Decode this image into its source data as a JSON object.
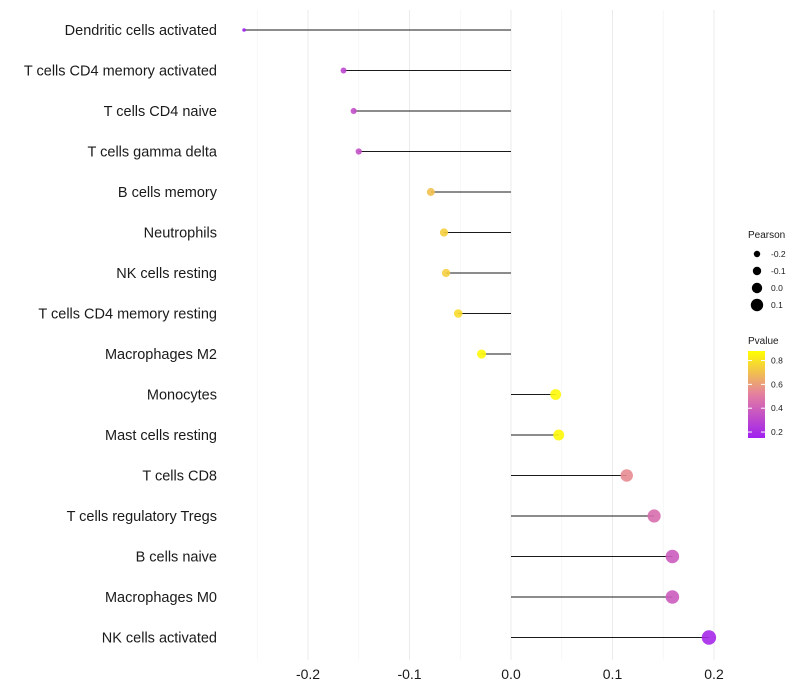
{
  "chart_data": {
    "type": "lollipop",
    "title": "",
    "xlabel": "",
    "ylabel": "",
    "xlim": [
      -0.3,
      0.22
    ],
    "x_ticks": [
      -0.2,
      -0.1,
      0.0,
      0.1,
      0.2
    ],
    "x_tick_labels": [
      "-0.2",
      "-0.1",
      "0.0",
      "0.1",
      "0.2"
    ],
    "grid": true,
    "categories": [
      "Dendritic cells activated",
      "T cells CD4 memory activated",
      "T cells CD4 naive",
      "T cells gamma delta",
      "B cells memory",
      "Neutrophils",
      "NK cells resting",
      "T cells CD4 memory resting",
      "Macrophages M2",
      "Monocytes",
      "Mast cells resting",
      "T cells CD8",
      "T cells regulatory  Tregs ",
      "B cells naive",
      "Macrophages M0",
      "NK cells activated"
    ],
    "values": [
      -0.263,
      -0.165,
      -0.155,
      -0.15,
      -0.079,
      -0.066,
      -0.064,
      -0.052,
      -0.029,
      0.044,
      0.047,
      0.114,
      0.141,
      0.159,
      0.159,
      0.195
    ],
    "pvalues": [
      0.15,
      0.3,
      0.33,
      0.34,
      0.7,
      0.74,
      0.74,
      0.78,
      0.86,
      0.86,
      0.86,
      0.55,
      0.45,
      0.38,
      0.38,
      0.18
    ],
    "legend_size": {
      "title": "Pearson",
      "values": [
        -0.2,
        -0.1,
        0.0,
        0.1
      ],
      "labels": [
        "-0.2",
        "-0.1",
        "0.0",
        "0.1"
      ]
    },
    "legend_color": {
      "title": "Pvalue",
      "range": [
        0.15,
        0.88
      ],
      "ticks": [
        0.2,
        0.4,
        0.6,
        0.8
      ],
      "tick_labels": [
        "0.2",
        "0.4",
        "0.6",
        "0.8"
      ],
      "colors": [
        "#a020f0",
        "#e47fa0",
        "#ffff00"
      ]
    },
    "legend_position": "right"
  }
}
